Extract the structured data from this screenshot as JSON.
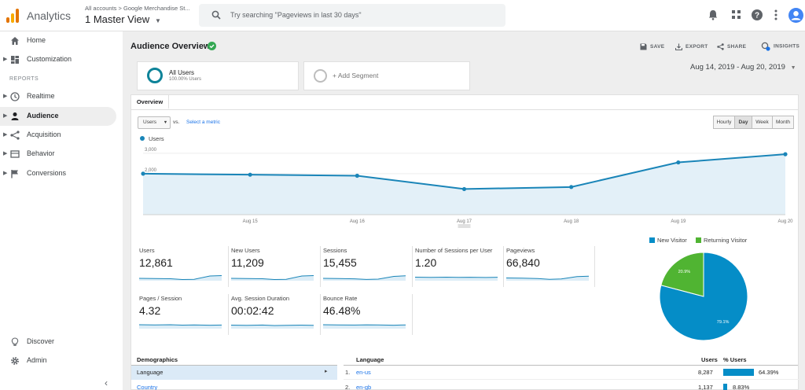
{
  "header": {
    "app_title": "Analytics",
    "account_path": "All accounts > Google Merchandise St...",
    "view_name": "1 Master View",
    "search_placeholder": "Try searching \"Pageviews in last 30 days\""
  },
  "sidebar": {
    "reports_label": "REPORTS",
    "items": [
      {
        "label": "Home",
        "icon": "home-icon"
      },
      {
        "label": "Customization",
        "icon": "dashboard-icon"
      },
      {
        "label": "Realtime",
        "icon": "clock-icon"
      },
      {
        "label": "Audience",
        "icon": "person-icon"
      },
      {
        "label": "Acquisition",
        "icon": "acquisition-icon"
      },
      {
        "label": "Behavior",
        "icon": "behavior-icon"
      },
      {
        "label": "Conversions",
        "icon": "flag-icon"
      }
    ],
    "bottom_items": [
      {
        "label": "Discover",
        "icon": "lightbulb-icon"
      },
      {
        "label": "Admin",
        "icon": "gear-icon"
      }
    ]
  },
  "page": {
    "title": "Audience Overview",
    "actions": {
      "save": "SAVE",
      "export": "EXPORT",
      "share": "SHARE",
      "insights": "INSIGHTS"
    },
    "segment": {
      "name": "All Users",
      "pct": "100.00% Users"
    },
    "add_segment": "+ Add Segment",
    "date_range": "Aug 14, 2019 - Aug 20, 2019",
    "tab": "Overview",
    "metric_select": "Users",
    "vs": "vs.",
    "select_metric": "Select a metric",
    "granularity": [
      "Hourly",
      "Day",
      "Week",
      "Month"
    ],
    "granularity_selected": "Day"
  },
  "chart_data": {
    "type": "area",
    "series": [
      {
        "name": "Users",
        "values": [
          2000,
          1950,
          1900,
          1250,
          1350,
          2550,
          2950
        ]
      }
    ],
    "x": [
      "",
      "Aug 15",
      "Aug 16",
      "Aug 17",
      "Aug 18",
      "Aug 19",
      "Aug 20"
    ],
    "yticks": [
      "3,000",
      "2,000",
      "1,000"
    ],
    "ylim": [
      0,
      3300
    ],
    "color": "#1a85b8"
  },
  "kpis": [
    {
      "label": "Users",
      "value": "12,861"
    },
    {
      "label": "New Users",
      "value": "11,209"
    },
    {
      "label": "Sessions",
      "value": "15,455"
    },
    {
      "label": "Number of Sessions per User",
      "value": "1.20"
    },
    {
      "label": "Pageviews",
      "value": "66,840"
    },
    {
      "label": "Pages / Session",
      "value": "4.32"
    },
    {
      "label": "Avg. Session Duration",
      "value": "00:02:42"
    },
    {
      "label": "Bounce Rate",
      "value": "46.48%"
    }
  ],
  "pie": {
    "legend": [
      {
        "name": "New Visitor",
        "color": "#058dc7"
      },
      {
        "name": "Returning Visitor",
        "color": "#50b432"
      }
    ],
    "slices": [
      {
        "name": "New Visitor",
        "pct": 79.1,
        "label": "79.1%",
        "color": "#058dc7"
      },
      {
        "name": "Returning Visitor",
        "pct": 20.9,
        "label": "20.9%",
        "color": "#50b432"
      }
    ]
  },
  "demographics": {
    "title": "Demographics",
    "rows": [
      "Language",
      "Country"
    ]
  },
  "language_table": {
    "title": "Language",
    "col_users": "Users",
    "col_pct": "% Users",
    "rows": [
      {
        "num": "1.",
        "lang": "en-us",
        "users": "8,287",
        "pct_label": "64.39%",
        "pct": 64.39
      },
      {
        "num": "2.",
        "lang": "en-gb",
        "users": "1,137",
        "pct_label": "8.83%",
        "pct": 8.83
      }
    ]
  }
}
